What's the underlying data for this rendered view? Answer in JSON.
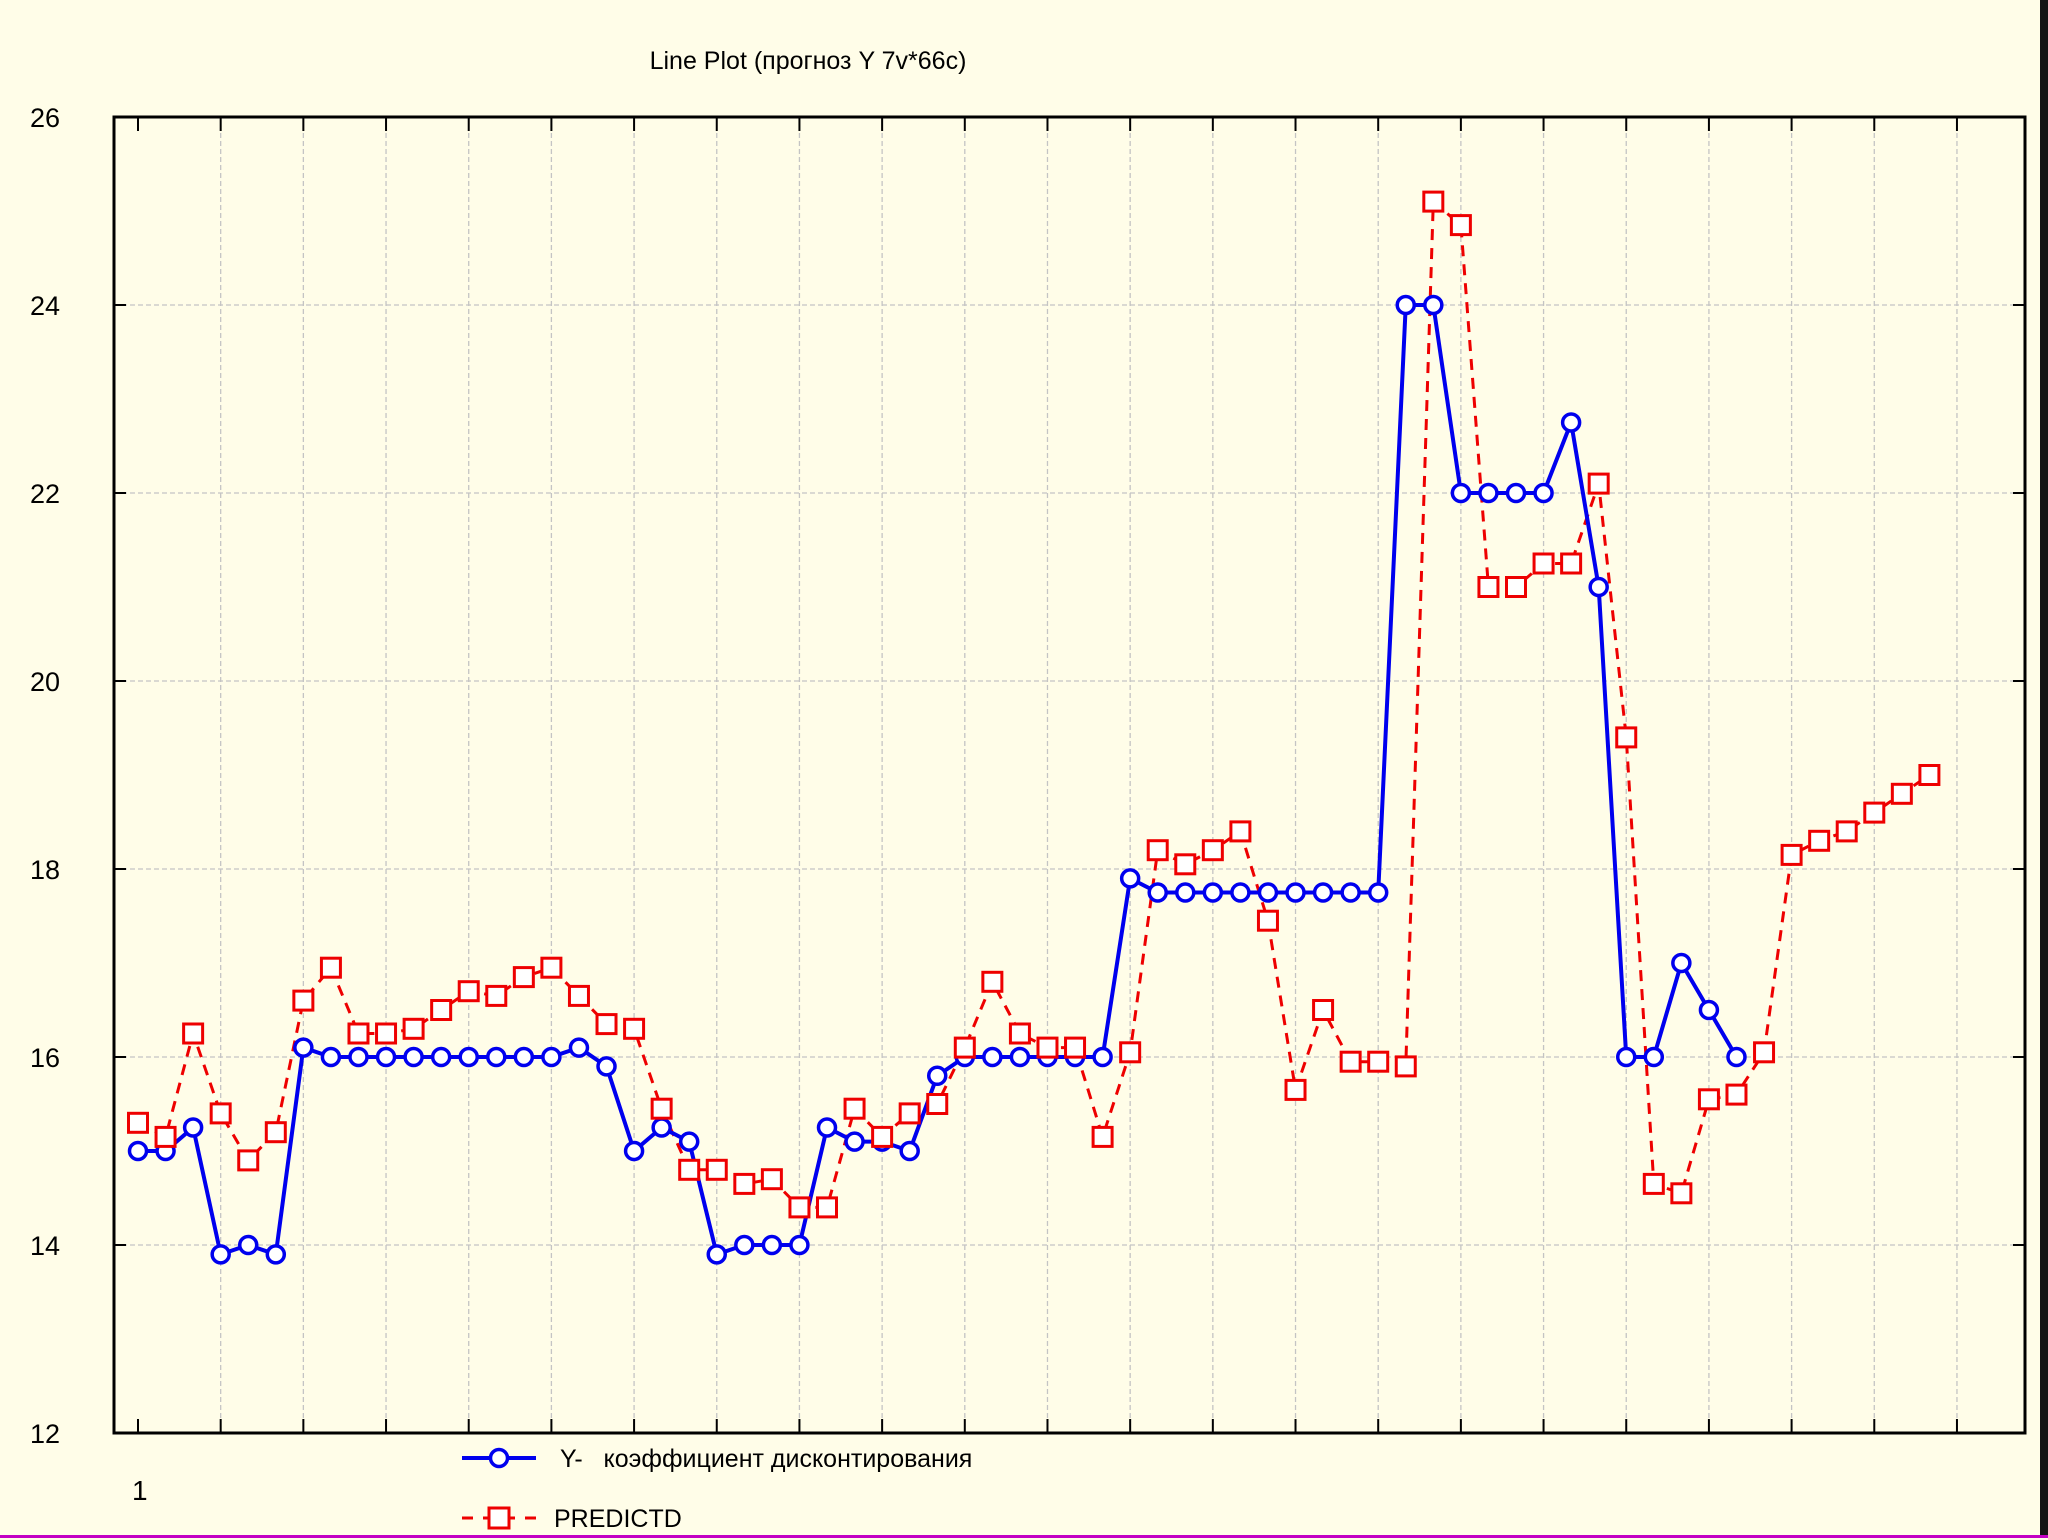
{
  "colors": {
    "background": "#fffde8",
    "series_actual": "#0000ee",
    "series_predicted": "#ee0000",
    "grid": "#c4c4c4"
  },
  "chart_data": {
    "type": "line",
    "title": "Line Plot (прогноз Y 7v*66c)",
    "xlabel": "",
    "ylabel": "",
    "ylim": [
      12,
      26
    ],
    "yticks": [
      12,
      14,
      16,
      18,
      20,
      22,
      24,
      26
    ],
    "x_tick_labels": [
      "1"
    ],
    "grid": true,
    "legend_position": "bottom",
    "series": [
      {
        "name": "Y-   коэффициент дисконтирования",
        "marker": "circle",
        "line_style": "solid",
        "values": [
          15.0,
          15.0,
          15.25,
          13.9,
          14.0,
          13.9,
          16.1,
          16.0,
          16.0,
          16.0,
          16.0,
          16.0,
          16.0,
          16.0,
          16.0,
          16.0,
          16.1,
          15.9,
          15.0,
          15.25,
          15.1,
          13.9,
          14.0,
          14.0,
          14.0,
          15.25,
          15.1,
          15.1,
          15.0,
          15.8,
          16.0,
          16.0,
          16.0,
          16.0,
          16.0,
          16.0,
          17.9,
          17.75,
          17.75,
          17.75,
          17.75,
          17.75,
          17.75,
          17.75,
          17.75,
          17.75,
          24.0,
          24.0,
          22.0,
          22.0,
          22.0,
          22.0,
          22.75,
          21.0,
          16.0,
          16.0,
          17.0,
          16.5,
          16.0
        ]
      },
      {
        "name": "PREDICTD",
        "marker": "square",
        "line_style": "dashed",
        "values": [
          15.3,
          15.15,
          16.25,
          15.4,
          14.9,
          15.2,
          16.6,
          16.95,
          16.25,
          16.25,
          16.3,
          16.5,
          16.7,
          16.65,
          16.85,
          16.95,
          16.65,
          16.35,
          16.3,
          15.45,
          14.8,
          14.8,
          14.65,
          14.7,
          14.4,
          14.4,
          15.45,
          15.15,
          15.4,
          15.5,
          16.1,
          16.8,
          16.25,
          16.1,
          16.1,
          15.15,
          16.05,
          18.2,
          18.05,
          18.2,
          18.4,
          17.45,
          15.65,
          16.5,
          15.95,
          15.95,
          15.9,
          25.1,
          24.85,
          21.0,
          21.0,
          21.25,
          21.25,
          22.1,
          19.4,
          14.65,
          14.55,
          15.55,
          15.6,
          16.05,
          18.15,
          18.3,
          18.4,
          18.6,
          18.8,
          19.0
        ]
      }
    ]
  }
}
